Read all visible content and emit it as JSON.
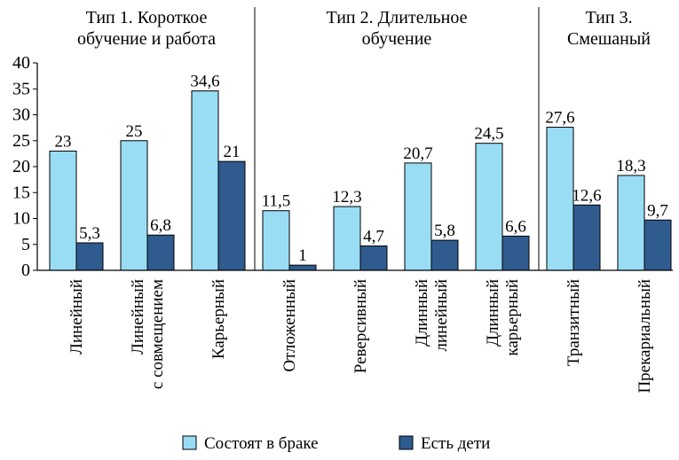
{
  "chart_data": {
    "type": "bar",
    "groups": [
      {
        "title_lines": [
          "Тип 1. Короткое",
          "обучение и работа"
        ],
        "categories": [
          "Линейный",
          "Линейный с совмещением",
          "Карьерный"
        ]
      },
      {
        "title_lines": [
          "Тип 2. Длительное",
          "обучение"
        ],
        "categories": [
          "Отложенный",
          "Реверсивный",
          "Длинный линейный",
          "Длинный карьерный"
        ]
      },
      {
        "title_lines": [
          "Тип 3.",
          "Смешаный"
        ],
        "categories": [
          "Транзитный",
          "Прекариальный"
        ]
      }
    ],
    "categories": [
      {
        "lines": [
          "Линейный"
        ]
      },
      {
        "lines": [
          "Линейный",
          "с совмещением"
        ]
      },
      {
        "lines": [
          "Карьерный"
        ]
      },
      {
        "lines": [
          "Отложенный"
        ]
      },
      {
        "lines": [
          "Реверсивный"
        ]
      },
      {
        "lines": [
          "Длинный",
          "линейный"
        ]
      },
      {
        "lines": [
          "Длинный",
          "карьерный"
        ]
      },
      {
        "lines": [
          "Транзитный"
        ]
      },
      {
        "lines": [
          "Прекариальный"
        ]
      }
    ],
    "series": [
      {
        "name": "Состоят в браке",
        "color": "#99DDF5",
        "values": [
          23,
          25,
          34.6,
          11.5,
          12.3,
          20.7,
          24.5,
          27.6,
          18.3
        ],
        "labels": [
          "23",
          "25",
          "34,6",
          "11,5",
          "12,3",
          "20,7",
          "24,5",
          "27,6",
          "18,3"
        ]
      },
      {
        "name": "Есть дети",
        "color": "#2F5B8F",
        "values": [
          5.3,
          6.8,
          21,
          1,
          4.7,
          5.8,
          6.6,
          12.6,
          9.7
        ],
        "labels": [
          "5,3",
          "6,8",
          "21",
          "1",
          "4,7",
          "5,8",
          "6,6",
          "12,6",
          "9,7"
        ]
      }
    ],
    "ylim": [
      0,
      40
    ],
    "yticks": [
      0,
      5,
      10,
      15,
      20,
      25,
      30,
      35,
      40
    ],
    "grid": false,
    "legend_position": "bottom-center"
  }
}
